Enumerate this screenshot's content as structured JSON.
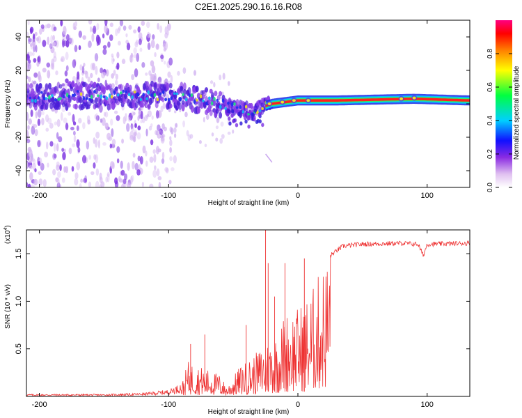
{
  "title": "C2E1.2025.290.16.16.R08",
  "chart_data": [
    {
      "type": "heatmap",
      "title": "C2E1.2025.290.16.16.R08",
      "xlabel": "Height of straight line (km)",
      "ylabel": "Frequency (Hz)",
      "xlim": [
        -210,
        133
      ],
      "ylim": [
        -50,
        50
      ],
      "xticks": [
        -200,
        -100,
        0,
        100
      ],
      "xtick_labels": [
        "-200",
        "-100",
        "0",
        "100"
      ],
      "yticks": [
        40,
        20,
        0,
        -20,
        -40
      ],
      "ytick_labels": [
        "40",
        "20",
        "0",
        "-20",
        "-40"
      ],
      "ridge": [
        {
          "x": -210,
          "y": 4
        },
        {
          "x": -180,
          "y": 5
        },
        {
          "x": -150,
          "y": 5
        },
        {
          "x": -120,
          "y": 5
        },
        {
          "x": -100,
          "y": 5
        },
        {
          "x": -80,
          "y": 3
        },
        {
          "x": -60,
          "y": 0
        },
        {
          "x": -45,
          "y": -3
        },
        {
          "x": -35,
          "y": -5
        },
        {
          "x": -28,
          "y": -2
        },
        {
          "x": -20,
          "y": 0
        },
        {
          "x": -10,
          "y": 1
        },
        {
          "x": 0,
          "y": 2
        },
        {
          "x": 30,
          "y": 2
        },
        {
          "x": 90,
          "y": 3
        },
        {
          "x": 133,
          "y": 2
        }
      ],
      "colorbar": {
        "label": "Normalized spectral amplitude",
        "range": [
          0,
          1
        ],
        "ticks": [
          0.0,
          0.2,
          0.4,
          0.6,
          0.8
        ],
        "tick_labels": [
          "0.0",
          "0.2",
          "0.4",
          "0.6",
          "0.8"
        ]
      }
    },
    {
      "type": "line",
      "xlabel": "Height of straight line (km)",
      "ylabel": "SNR (10 * v/v)",
      "y_multiplier": "(x10",
      "y_multiplier_exp": "4",
      "y_multiplier_close": ")",
      "xlim": [
        -210,
        133
      ],
      "ylim": [
        0,
        1.75
      ],
      "xticks": [
        -200,
        -100,
        0,
        100
      ],
      "xtick_labels": [
        "-200",
        "-100",
        "0",
        "100"
      ],
      "yticks": [
        0.5,
        1.0,
        1.5
      ],
      "ytick_labels": [
        "0.5",
        "1.0",
        "1.5"
      ],
      "series": [
        {
          "name": "SNR",
          "color": "#ee3333",
          "envelope": [
            {
              "x": -210,
              "y": 0.02
            },
            {
              "x": -150,
              "y": 0.02
            },
            {
              "x": -120,
              "y": 0.03
            },
            {
              "x": -100,
              "y": 0.06
            },
            {
              "x": -90,
              "y": 0.12
            },
            {
              "x": -85,
              "y": 0.35
            },
            {
              "x": -75,
              "y": 0.3
            },
            {
              "x": -60,
              "y": 0.22
            },
            {
              "x": -55,
              "y": 0.1
            },
            {
              "x": -50,
              "y": 0.2
            },
            {
              "x": -45,
              "y": 0.3
            },
            {
              "x": -35,
              "y": 0.4
            },
            {
              "x": -28,
              "y": 0.5
            },
            {
              "x": -20,
              "y": 0.6
            },
            {
              "x": -15,
              "y": 0.65
            },
            {
              "x": -10,
              "y": 0.85
            },
            {
              "x": 0,
              "y": 0.9
            },
            {
              "x": 10,
              "y": 1.05
            },
            {
              "x": 20,
              "y": 1.35
            },
            {
              "x": 25,
              "y": 1.48
            },
            {
              "x": 35,
              "y": 1.58
            },
            {
              "x": 50,
              "y": 1.6
            },
            {
              "x": 80,
              "y": 1.61
            },
            {
              "x": 93,
              "y": 1.6
            },
            {
              "x": 97,
              "y": 1.48
            },
            {
              "x": 100,
              "y": 1.6
            },
            {
              "x": 133,
              "y": 1.61
            }
          ],
          "spikes": [
            {
              "x": -25,
              "y": 1.75
            },
            {
              "x": -23,
              "y": 1.4
            },
            {
              "x": -18,
              "y": 1.05
            },
            {
              "x": -10,
              "y": 1.4
            },
            {
              "x": 5,
              "y": 1.45
            },
            {
              "x": -72,
              "y": 0.65
            },
            {
              "x": -83,
              "y": 0.55
            },
            {
              "x": -40,
              "y": 0.75
            }
          ]
        }
      ]
    }
  ]
}
